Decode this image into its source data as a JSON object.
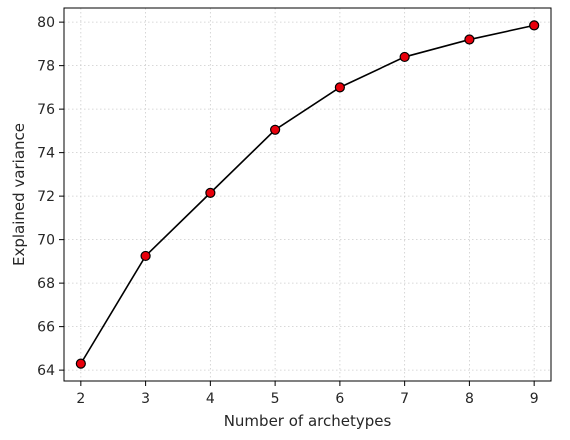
{
  "chart_data": {
    "type": "line",
    "title": "",
    "xlabel": "Number of archetypes",
    "ylabel": "Explained variance",
    "x": [
      2,
      3,
      4,
      5,
      6,
      7,
      8,
      9
    ],
    "series": [
      {
        "values": [
          64.3,
          69.25,
          72.15,
          75.05,
          77.0,
          78.4,
          79.2,
          79.85
        ]
      }
    ],
    "xlim": [
      1.74,
      9.26
    ],
    "ylim": [
      63.5,
      80.65
    ],
    "xticks": [
      "2",
      "3",
      "4",
      "5",
      "6",
      "7",
      "8",
      "9"
    ],
    "yticks": [
      "64",
      "66",
      "68",
      "70",
      "72",
      "74",
      "76",
      "78",
      "80"
    ],
    "grid": true,
    "line_color": "#000000",
    "marker_color": "#e8000b",
    "marker_edge_color": "#000000",
    "grid_color": "#cccccc"
  }
}
